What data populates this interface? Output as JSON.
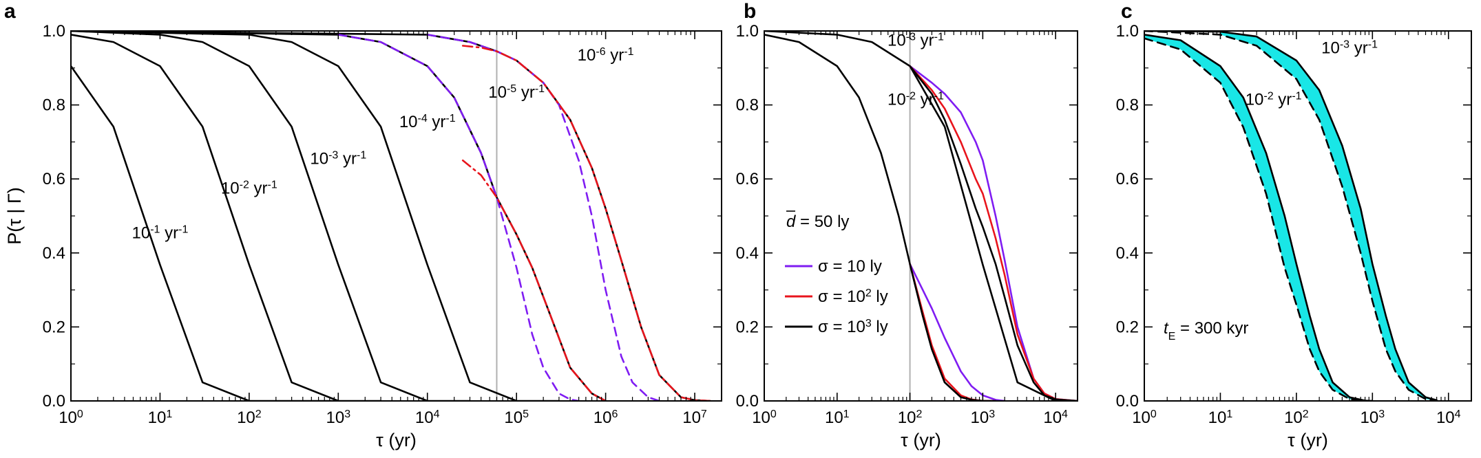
{
  "colors": {
    "black": "#000000",
    "purple": "#7f1cf2",
    "red": "#e8141c",
    "cyan": "#19e6e6",
    "gray": "#b0b0b0"
  },
  "chart_data": [
    {
      "panel": "a",
      "type": "line",
      "xscale": "log",
      "xlim": [
        1,
        20000000
      ],
      "ylim": [
        0,
        1
      ],
      "xlabel": "τ    (yr)",
      "ylabel": "P(τ | Γ)",
      "x_ticks": [
        {
          "base": "10",
          "exp": "0",
          "value": 1
        },
        {
          "base": "10",
          "exp": "1",
          "value": 10
        },
        {
          "base": "10",
          "exp": "2",
          "value": 100
        },
        {
          "base": "10",
          "exp": "3",
          "value": 1000
        },
        {
          "base": "10",
          "exp": "4",
          "value": 10000
        },
        {
          "base": "10",
          "exp": "5",
          "value": 100000
        },
        {
          "base": "10",
          "exp": "6",
          "value": 1000000
        },
        {
          "base": "10",
          "exp": "7",
          "value": 10000000
        }
      ],
      "y_ticks": [
        "0.0",
        "0.2",
        "0.4",
        "0.6",
        "0.8",
        "1.0"
      ],
      "y_tick_values": [
        0,
        0.2,
        0.4,
        0.6,
        0.8,
        1.0
      ],
      "vertical_line_x": 60000,
      "series": [
        {
          "style": "solid",
          "color": "black",
          "x": [
            1,
            3,
            10,
            30,
            100,
            300,
            1000
          ],
          "y": [
            0.905,
            0.741,
            0.368,
            0.05,
            0.0,
            0.0,
            0.0
          ]
        },
        {
          "style": "solid",
          "color": "black",
          "x": [
            1,
            3,
            10,
            30,
            100,
            300,
            1000,
            3000
          ],
          "y": [
            0.99,
            0.97,
            0.905,
            0.741,
            0.368,
            0.05,
            0.0,
            0.0
          ]
        },
        {
          "style": "solid",
          "color": "black",
          "x": [
            1,
            10,
            30,
            100,
            300,
            1000,
            3000,
            10000,
            30000
          ],
          "y": [
            1.0,
            0.99,
            0.97,
            0.905,
            0.741,
            0.368,
            0.05,
            0.0,
            0.0
          ]
        },
        {
          "style": "solid",
          "color": "black",
          "x": [
            1,
            100,
            300,
            1000,
            3000,
            10000,
            30000,
            100000,
            300000
          ],
          "y": [
            1.0,
            0.99,
            0.97,
            0.905,
            0.741,
            0.368,
            0.05,
            0.0,
            0.0
          ]
        },
        {
          "style": "solid",
          "color": "black",
          "x": [
            1,
            1000,
            3000,
            10000,
            20000,
            40000,
            60000,
            100000,
            150000,
            250000,
            400000,
            700000,
            1000000
          ],
          "y": [
            1.0,
            0.99,
            0.97,
            0.905,
            0.82,
            0.67,
            0.55,
            0.45,
            0.36,
            0.22,
            0.09,
            0.02,
            0.0
          ]
        },
        {
          "style": "solid",
          "color": "black",
          "x": [
            1,
            10000,
            30000,
            60000,
            100000,
            200000,
            400000,
            700000,
            1000000,
            1500000,
            2500000,
            4000000,
            7000000,
            10000000,
            15000000
          ],
          "y": [
            1.0,
            0.99,
            0.97,
            0.945,
            0.92,
            0.86,
            0.76,
            0.63,
            0.52,
            0.38,
            0.2,
            0.07,
            0.01,
            0.002,
            0.0
          ]
        },
        {
          "style": "dashed",
          "color": "purple",
          "x": [
            1000,
            3000,
            10000,
            20000,
            40000,
            60000,
            100000,
            150000,
            200000,
            300000,
            400000,
            500000
          ],
          "y": [
            0.99,
            0.97,
            0.905,
            0.82,
            0.67,
            0.55,
            0.36,
            0.18,
            0.09,
            0.02,
            0.004,
            0.0
          ]
        },
        {
          "style": "dashed",
          "color": "purple",
          "x": [
            10000,
            30000,
            60000,
            100000,
            200000,
            300000,
            500000,
            700000,
            1000000,
            1500000,
            2000000,
            3000000,
            4000000
          ],
          "y": [
            0.99,
            0.97,
            0.945,
            0.92,
            0.86,
            0.8,
            0.65,
            0.5,
            0.3,
            0.12,
            0.05,
            0.01,
            0.0
          ]
        },
        {
          "style": "dashdot",
          "color": "red",
          "x": [
            25000,
            40000,
            60000,
            100000,
            150000,
            250000,
            400000,
            700000,
            1000000
          ],
          "y": [
            0.65,
            0.61,
            0.55,
            0.45,
            0.36,
            0.22,
            0.09,
            0.02,
            0.0
          ]
        },
        {
          "style": "dashdot",
          "color": "red",
          "x": [
            25000,
            40000,
            60000,
            100000,
            200000,
            400000,
            700000,
            1000000,
            1500000,
            2500000,
            4000000,
            7000000,
            10000000,
            15000000
          ],
          "y": [
            0.96,
            0.955,
            0.945,
            0.92,
            0.86,
            0.76,
            0.63,
            0.52,
            0.38,
            0.2,
            0.07,
            0.01,
            0.002,
            0.0
          ]
        }
      ],
      "annotations": [
        {
          "base": "10",
          "exp": "-1",
          "unit": " yr",
          "unit_exp": "-1",
          "x": 10,
          "y": 0.44
        },
        {
          "base": "10",
          "exp": "-2",
          "unit": " yr",
          "unit_exp": "-1",
          "x": 100,
          "y": 0.56
        },
        {
          "base": "10",
          "exp": "-3",
          "unit": " yr",
          "unit_exp": "-1",
          "x": 1000,
          "y": 0.64
        },
        {
          "base": "10",
          "exp": "-4",
          "unit": " yr",
          "unit_exp": "-1",
          "x": 10000,
          "y": 0.74
        },
        {
          "base": "10",
          "exp": "-5",
          "unit": " yr",
          "unit_exp": "-1",
          "x": 100000,
          "y": 0.82
        },
        {
          "base": "10",
          "exp": "-6",
          "unit": " yr",
          "unit_exp": "-1",
          "x": 1000000,
          "y": 0.92
        }
      ]
    },
    {
      "panel": "b",
      "type": "line",
      "xscale": "log",
      "xlim": [
        1,
        20000
      ],
      "ylim": [
        0,
        1
      ],
      "xlabel": "τ    (yr)",
      "x_ticks": [
        {
          "base": "10",
          "exp": "0",
          "value": 1
        },
        {
          "base": "10",
          "exp": "1",
          "value": 10
        },
        {
          "base": "10",
          "exp": "2",
          "value": 100
        },
        {
          "base": "10",
          "exp": "3",
          "value": 1000
        },
        {
          "base": "10",
          "exp": "4",
          "value": 10000
        }
      ],
      "y_ticks": [
        "0.0",
        "0.2",
        "0.4",
        "0.6",
        "0.8",
        "1.0"
      ],
      "y_tick_values": [
        0,
        0.2,
        0.4,
        0.6,
        0.8,
        1.0
      ],
      "vertical_line_x": 100,
      "series": [
        {
          "style": "solid",
          "color": "black",
          "x": [
            1,
            10,
            30,
            100,
            300,
            1000,
            3000,
            10000,
            20000
          ],
          "y": [
            1.0,
            0.99,
            0.97,
            0.905,
            0.741,
            0.368,
            0.05,
            0.0,
            0.0
          ]
        },
        {
          "style": "solid",
          "color": "black",
          "x": [
            1,
            3,
            10,
            20,
            40,
            70,
            100,
            150,
            200,
            300,
            500,
            700,
            1000,
            2000
          ],
          "y": [
            0.99,
            0.97,
            0.905,
            0.82,
            0.67,
            0.5,
            0.37,
            0.23,
            0.14,
            0.05,
            0.01,
            0.003,
            0.0,
            0.0
          ]
        },
        {
          "style": "solid",
          "color": "purple",
          "x": [
            100,
            200,
            300,
            500,
            800,
            1000,
            1500,
            2000,
            3000,
            5000,
            7000,
            10000,
            20000
          ],
          "y": [
            0.905,
            0.86,
            0.83,
            0.78,
            0.7,
            0.65,
            0.5,
            0.38,
            0.2,
            0.06,
            0.02,
            0.005,
            0.0
          ]
        },
        {
          "style": "solid",
          "color": "purple",
          "x": [
            100,
            150,
            200,
            300,
            500,
            700,
            1000,
            1500,
            2000
          ],
          "y": [
            0.37,
            0.3,
            0.25,
            0.17,
            0.08,
            0.04,
            0.015,
            0.003,
            0.0
          ]
        },
        {
          "style": "solid",
          "color": "red",
          "x": [
            100,
            200,
            300,
            500,
            800,
            1000,
            1500,
            2000,
            3000,
            5000,
            7000,
            10000,
            20000
          ],
          "y": [
            0.905,
            0.84,
            0.79,
            0.7,
            0.6,
            0.56,
            0.44,
            0.34,
            0.18,
            0.06,
            0.02,
            0.005,
            0.0
          ]
        },
        {
          "style": "solid",
          "color": "red",
          "x": [
            100,
            150,
            200,
            300,
            500,
            700,
            1000,
            1500
          ],
          "y": [
            0.37,
            0.24,
            0.15,
            0.06,
            0.015,
            0.004,
            0.0,
            0.0
          ]
        },
        {
          "style": "solid",
          "color": "black",
          "x": [
            100,
            200,
            300,
            500,
            800,
            1000,
            1500,
            2000,
            3000,
            5000,
            7000,
            10000,
            20000
          ],
          "y": [
            0.905,
            0.83,
            0.76,
            0.64,
            0.52,
            0.47,
            0.37,
            0.28,
            0.15,
            0.05,
            0.015,
            0.004,
            0.0
          ]
        },
        {
          "style": "solid",
          "color": "black",
          "x": [
            100,
            150,
            200,
            300,
            500,
            700,
            1000,
            1500
          ],
          "y": [
            0.37,
            0.23,
            0.14,
            0.05,
            0.01,
            0.003,
            0.0,
            0.0
          ]
        }
      ],
      "legend": [
        {
          "label": "σ = 10 ly",
          "color": "purple"
        },
        {
          "label": "σ = 10",
          "sup": "2",
          "suffix": " ly",
          "color": "red"
        },
        {
          "label": "σ = 10",
          "sup": "3",
          "suffix": " ly",
          "color": "black"
        }
      ],
      "legend_placement": "center-left",
      "distance_label": {
        "symbol": "d",
        "text": " = 50 ly"
      },
      "annotations": [
        {
          "base": "10",
          "exp": "-3",
          "unit": " yr",
          "unit_exp": "-1",
          "x": 120,
          "y": 0.96
        },
        {
          "base": "10",
          "exp": "-2",
          "unit": " yr",
          "unit_exp": "-1",
          "x": 120,
          "y": 0.8
        }
      ]
    },
    {
      "panel": "c",
      "type": "line",
      "xscale": "log",
      "xlim": [
        1,
        20000
      ],
      "ylim": [
        0,
        1
      ],
      "xlabel": "τ   (yr)",
      "x_ticks": [
        {
          "base": "10",
          "exp": "0",
          "value": 1
        },
        {
          "base": "10",
          "exp": "1",
          "value": 10
        },
        {
          "base": "10",
          "exp": "2",
          "value": 100
        },
        {
          "base": "10",
          "exp": "3",
          "value": 1000
        },
        {
          "base": "10",
          "exp": "4",
          "value": 10000
        }
      ],
      "y_ticks": [
        "0.0",
        "0.2",
        "0.4",
        "0.6",
        "0.8",
        "1.0"
      ],
      "y_tick_values": [
        0,
        0.2,
        0.4,
        0.6,
        0.8,
        1.0
      ],
      "bands": [
        {
          "color": "cyan",
          "x": [
            1,
            3,
            10,
            20,
            40,
            70,
            100,
            150,
            200,
            300,
            500,
            800,
            1000
          ],
          "y_low": [
            0.98,
            0.95,
            0.86,
            0.74,
            0.56,
            0.36,
            0.26,
            0.14,
            0.08,
            0.03,
            0.005,
            0.0,
            0.0
          ],
          "y_high": [
            0.99,
            0.975,
            0.905,
            0.82,
            0.67,
            0.5,
            0.37,
            0.23,
            0.14,
            0.05,
            0.01,
            0.001,
            0.0
          ]
        },
        {
          "color": "cyan",
          "x": [
            10,
            30,
            100,
            200,
            400,
            700,
            1000,
            1500,
            2000,
            3000,
            5000,
            7000
          ],
          "y_low": [
            0.99,
            0.96,
            0.87,
            0.76,
            0.58,
            0.4,
            0.27,
            0.14,
            0.08,
            0.03,
            0.005,
            0.0
          ],
          "y_high": [
            0.998,
            0.985,
            0.92,
            0.84,
            0.69,
            0.52,
            0.37,
            0.23,
            0.14,
            0.05,
            0.01,
            0.002
          ]
        }
      ],
      "series": [
        {
          "style": "solid",
          "color": "black",
          "x": [
            1,
            3,
            10,
            20,
            40,
            70,
            100,
            150,
            200,
            300,
            500,
            800,
            1000
          ],
          "y": [
            0.99,
            0.975,
            0.905,
            0.82,
            0.67,
            0.5,
            0.37,
            0.23,
            0.14,
            0.05,
            0.01,
            0.001,
            0.0
          ]
        },
        {
          "style": "dashed",
          "color": "black",
          "x": [
            1,
            3,
            10,
            20,
            40,
            70,
            100,
            150,
            200,
            300,
            500,
            800,
            1000
          ],
          "y": [
            0.98,
            0.95,
            0.86,
            0.74,
            0.56,
            0.36,
            0.26,
            0.14,
            0.08,
            0.03,
            0.005,
            0.0,
            0.0
          ]
        },
        {
          "style": "solid",
          "color": "black",
          "x": [
            1,
            10,
            30,
            100,
            200,
            400,
            700,
            1000,
            1500,
            2000,
            3000,
            5000,
            7000
          ],
          "y": [
            1.0,
            0.998,
            0.985,
            0.92,
            0.84,
            0.69,
            0.52,
            0.37,
            0.23,
            0.14,
            0.05,
            0.01,
            0.002
          ]
        },
        {
          "style": "dashed",
          "color": "black",
          "x": [
            1,
            10,
            30,
            100,
            200,
            400,
            700,
            1000,
            1500,
            2000,
            3000,
            5000,
            7000
          ],
          "y": [
            1.0,
            0.99,
            0.96,
            0.87,
            0.76,
            0.58,
            0.4,
            0.27,
            0.14,
            0.08,
            0.03,
            0.005,
            0.0
          ]
        }
      ],
      "time_label": {
        "symbol": "t",
        "sub": "E",
        "text": " = 300 kyr"
      },
      "annotations": [
        {
          "base": "10",
          "exp": "-3",
          "unit": " yr",
          "unit_exp": "-1",
          "x": 500,
          "y": 0.94
        },
        {
          "base": "10",
          "exp": "-2",
          "unit": " yr",
          "unit_exp": "-1",
          "x": 50,
          "y": 0.8
        }
      ]
    }
  ]
}
